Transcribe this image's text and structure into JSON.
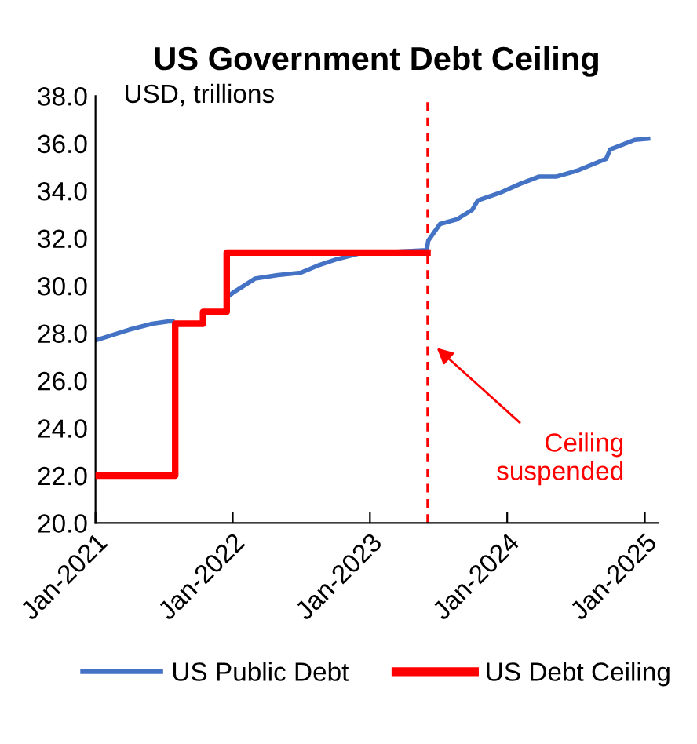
{
  "chart_data": {
    "type": "line",
    "title": "US Government Debt Ceiling",
    "ylabel": "USD, trillions",
    "series": [
      {
        "name": "US Public Debt",
        "color": "#4472c4",
        "x": [
          "2021-01-01",
          "2021-04-01",
          "2021-06-01",
          "2021-07-15",
          "2021-07-25",
          "2021-10-01",
          "2021-12-16",
          "2022-01-01",
          "2022-03-01",
          "2022-05-01",
          "2022-07-01",
          "2022-08-15",
          "2022-10-01",
          "2022-12-01",
          "2023-04-01",
          "2023-06-01",
          "2023-06-05",
          "2023-07-06",
          "2023-08-20",
          "2023-09-30",
          "2023-10-15",
          "2023-12-10",
          "2024-02-05",
          "2024-03-25",
          "2024-05-10",
          "2024-07-05",
          "2024-09-20",
          "2024-10-01",
          "2024-12-05",
          "2025-01-10"
        ],
        "values": [
          27.7,
          28.15,
          28.4,
          28.5,
          28.5,
          null,
          29.5,
          29.7,
          30.3,
          30.45,
          30.55,
          30.85,
          31.1,
          31.35,
          31.45,
          31.5,
          31.9,
          32.6,
          32.8,
          33.2,
          33.6,
          33.9,
          34.3,
          34.6,
          34.6,
          34.85,
          35.35,
          35.75,
          36.15,
          36.2
        ]
      },
      {
        "name": "US Debt Ceiling",
        "color": "#ff0000",
        "type": "step",
        "x": [
          "2021-01-01",
          "2021-08-01",
          "2021-10-14",
          "2021-12-16",
          "2023-06-03"
        ],
        "values": [
          22.0,
          28.4,
          28.9,
          31.4,
          31.4
        ]
      }
    ],
    "xlim": [
      "2021-01-01",
      "2025-02-05"
    ],
    "xticks": [
      {
        "value": "2021-01-01",
        "label": "Jan-2021"
      },
      {
        "value": "2022-01-01",
        "label": "Jan-2022"
      },
      {
        "value": "2023-01-01",
        "label": "Jan-2023"
      },
      {
        "value": "2024-01-01",
        "label": "Jan-2024"
      },
      {
        "value": "2025-01-01",
        "label": "Jan-2025"
      }
    ],
    "ylim": [
      20,
      38
    ],
    "yticks": [
      {
        "value": 20,
        "label": "20.0"
      },
      {
        "value": 22,
        "label": "22.0"
      },
      {
        "value": 24,
        "label": "24.0"
      },
      {
        "value": 26,
        "label": "26.0"
      },
      {
        "value": 28,
        "label": "28.0"
      },
      {
        "value": 30,
        "label": "30.0"
      },
      {
        "value": 32,
        "label": "32.0"
      },
      {
        "value": 34,
        "label": "34.0"
      },
      {
        "value": 36,
        "label": "36.0"
      },
      {
        "value": 38,
        "label": "38.0"
      }
    ],
    "ref_lines": [
      {
        "axis": "x",
        "value": "2023-06-03",
        "color": "#ff0000",
        "line_style": "dashed"
      }
    ],
    "annotations": [
      "Ceiling\nsuspended"
    ],
    "grid": false,
    "legend": "bottom",
    "marker": "none"
  }
}
